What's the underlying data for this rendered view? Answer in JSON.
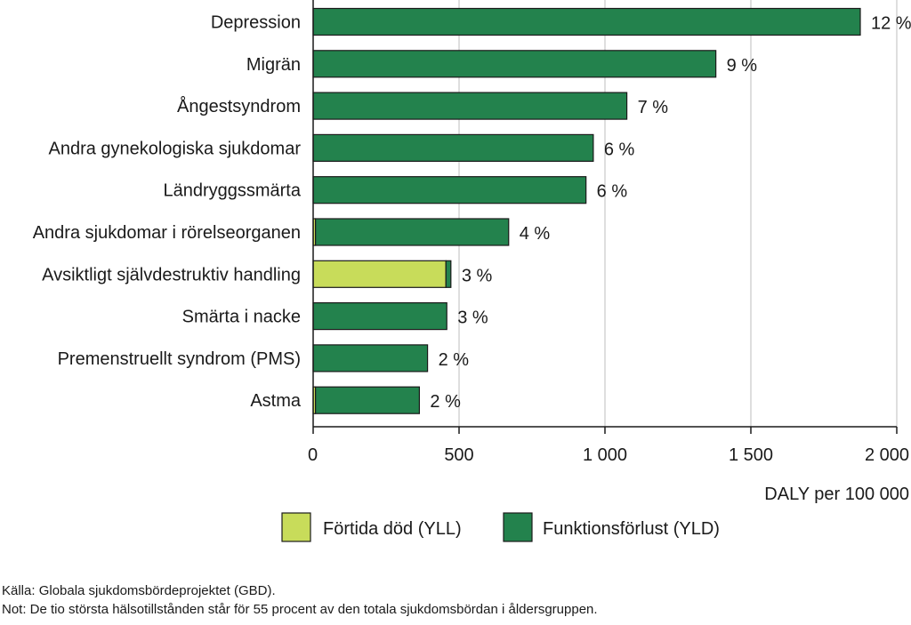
{
  "chart_data": {
    "type": "bar",
    "orientation": "horizontal",
    "stacked": true,
    "categories": [
      "Depression",
      "Migrän",
      "Ångestsyndrom",
      "Andra gynekologiska sjukdomar",
      "Ländryggssmärta",
      "Andra sjukdomar i rörelseorganen",
      "Avsiktligt självdestruktiv handling",
      "Smärta i nacke",
      "Premenstruellt syndrom (PMS)",
      "Astma"
    ],
    "series": [
      {
        "name": "Förtida död (YLL)",
        "color": "#c8dc5a",
        "values": [
          0,
          0,
          0,
          0,
          0,
          8,
          455,
          0,
          0,
          8
        ]
      },
      {
        "name": "Funktionsförlust (YLD)",
        "color": "#23824d",
        "values": [
          1875,
          1380,
          1075,
          960,
          935,
          662,
          17,
          458,
          392,
          356
        ]
      }
    ],
    "data_labels": [
      "12 %",
      "9 %",
      "7 %",
      "6 %",
      "6 %",
      "4 %",
      "3 %",
      "3 %",
      "2 %",
      "2 %"
    ],
    "xlabel": "DALY per 100 000",
    "xlim": [
      0,
      2000
    ],
    "x_ticks": [
      0,
      500,
      1000,
      1500,
      2000
    ],
    "x_tick_labels": [
      "0",
      "500",
      "1 000",
      "1 500",
      "2 000"
    ],
    "grid": "vertical",
    "legend_position": "bottom"
  },
  "notes": {
    "source": "Källa: Globala sjukdomsbördeprojektet (GBD).",
    "note": "Not: De tio största hälsotillstånden står för 55 procent av den totala sjukdomsbördan i åldersgruppen."
  }
}
